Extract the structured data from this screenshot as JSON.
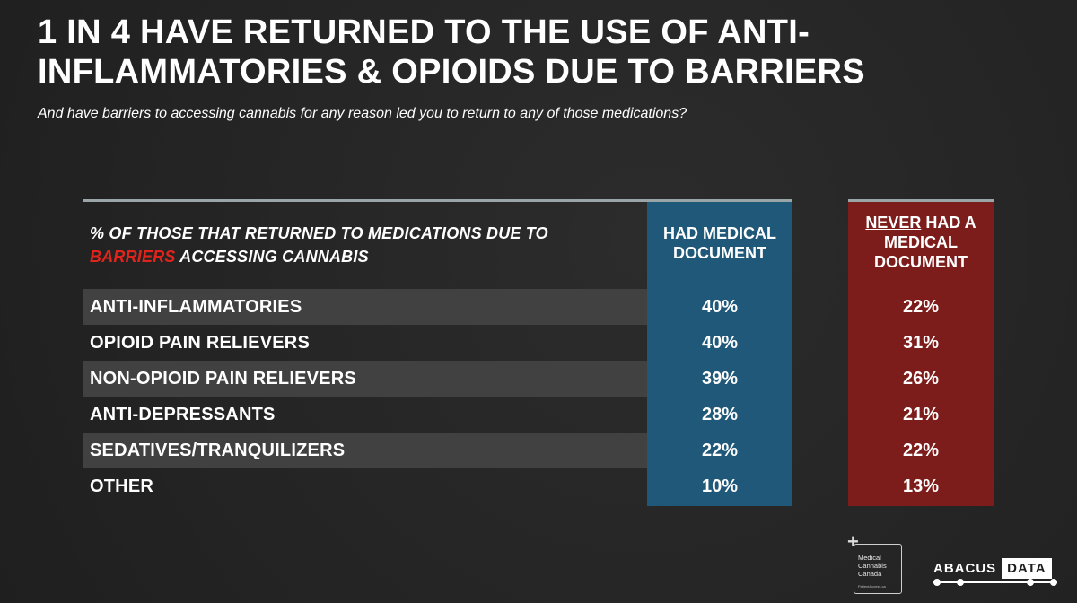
{
  "title": "1 IN 4 HAVE RETURNED TO THE USE OF ANTI-INFLAMMATORIES & OPIOIDS DUE TO BARRIERS",
  "subtitle": "And have barriers to accessing cannabis for any reason led you to return to any of those medications?",
  "colors": {
    "background": "#262626",
    "had_column": "#1f5878",
    "never_column": "#7d1d1b",
    "highlight": "#e0241c",
    "row_shade": "#414141"
  },
  "chart_data": {
    "type": "table",
    "header_label_part1": "% OF THOSE THAT RETURNED TO MEDICATIONS DUE TO",
    "header_label_highlight": "BARRIERS",
    "header_label_part2": "ACCESSING CANNABIS",
    "columns": [
      {
        "name": "HAD MEDICAL DOCUMENT"
      },
      {
        "name_underlined": "NEVER",
        "name_rest": "HAD A MEDICAL DOCUMENT"
      }
    ],
    "categories": [
      "ANTI-INFLAMMATORIES",
      "OPIOID PAIN RELIEVERS",
      "NON-OPIOID PAIN RELIEVERS",
      "ANTI-DEPRESSANTS",
      "SEDATIVES/TRANQUILIZERS",
      "OTHER"
    ],
    "series": [
      {
        "name": "HAD MEDICAL DOCUMENT",
        "values": [
          "40%",
          "40%",
          "39%",
          "28%",
          "22%",
          "10%"
        ]
      },
      {
        "name": "NEVER HAD A MEDICAL DOCUMENT",
        "values": [
          "22%",
          "31%",
          "26%",
          "21%",
          "22%",
          "13%"
        ]
      }
    ]
  },
  "logos": {
    "mcc": {
      "line1": "Medical",
      "line2": "Cannabis",
      "line3": "Canada",
      "small": "PatientAccess.ca"
    },
    "abacus": {
      "part1": "ABACUS",
      "part2": "DATA"
    }
  }
}
